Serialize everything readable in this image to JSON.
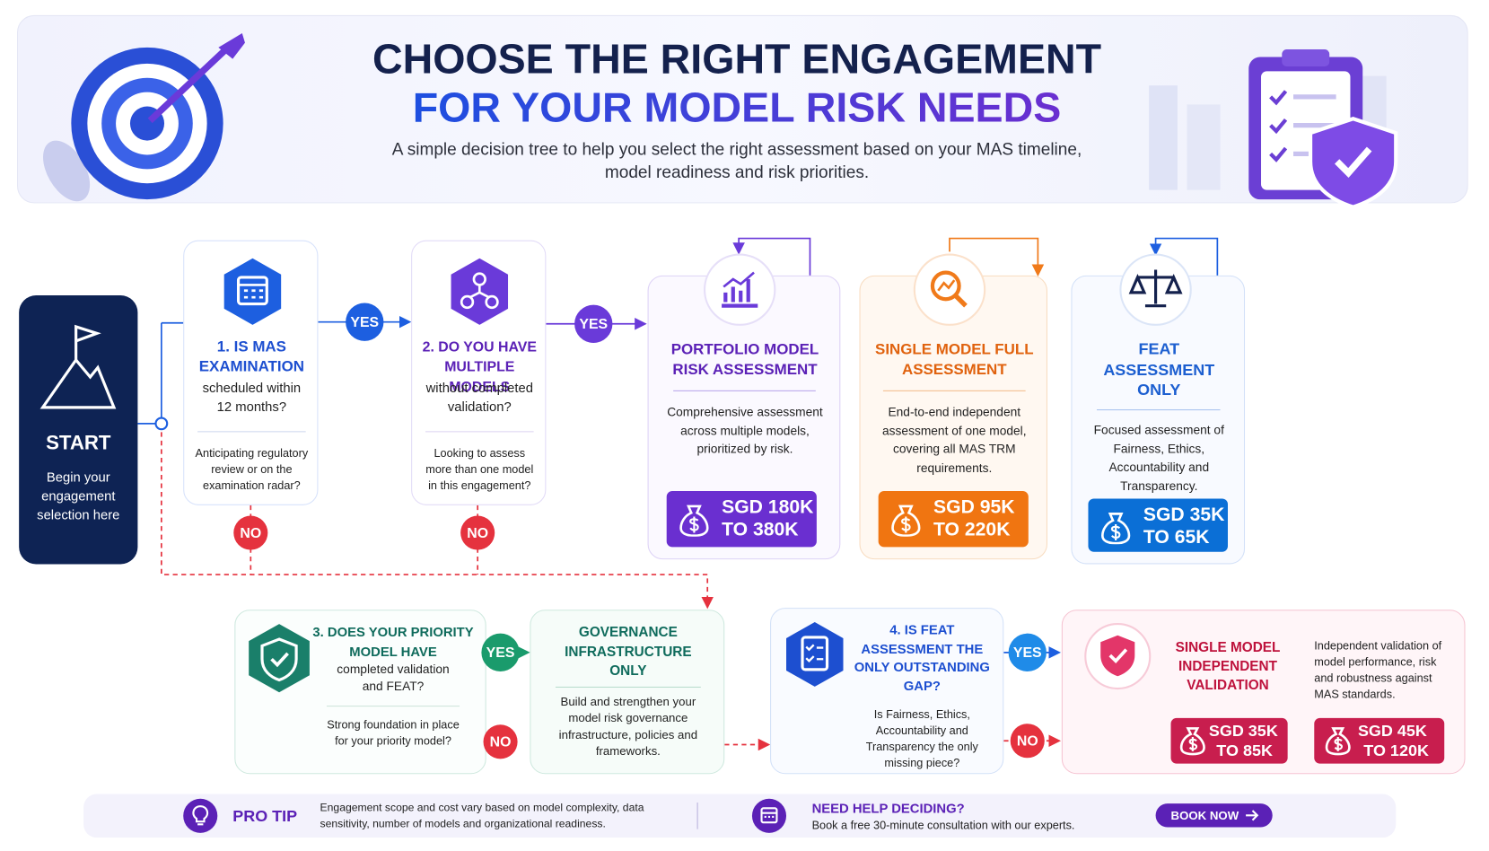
{
  "header": {
    "title_line1": "CHOOSE THE RIGHT ENGAGEMENT",
    "title_line2": "FOR YOUR MODEL RISK NEEDS",
    "subtitle_line1": "A simple decision tree to help you select the right assessment based on your MAS timeline,",
    "subtitle_line2": "model readiness and risk priorities."
  },
  "start": {
    "label": "START",
    "text": "Begin your engagement selection here"
  },
  "questions": [
    {
      "title": "1. IS MAS EXAMINATION",
      "detail": "scheduled within 12 months?",
      "note": "Anticipating regulatory review or on the examination radar?"
    },
    {
      "title": "2. DO YOU HAVE MULTIPLE MODELS",
      "detail": "without completed validation?",
      "note": "Looking to assess more than one model in this engagement?"
    },
    {
      "title": "3. DOES YOUR PRIORITY MODEL HAVE",
      "detail": "completed validation and FEAT?",
      "note": "Strong foundation in place for your priority model?"
    },
    {
      "title": "4. IS FEAT ASSESSMENT THE ONLY OUTSTANDING GAP?",
      "note": "Is Fairness, Ethics, Accountability and Transparency the only missing piece?"
    }
  ],
  "answers": [
    "YES",
    "NO",
    "YES",
    "NO",
    "YES",
    "NO",
    "YES",
    "NO"
  ],
  "outcomes": [
    {
      "title": "PORTFOLIO MODEL RISK ASSESSMENT",
      "description": "Comprehensive assessment across multiple models, prioritized by risk.",
      "prices": [
        {
          "from": "SGD 180K",
          "to": "TO 380K"
        }
      ]
    },
    {
      "title": "SINGLE MODEL FULL ASSESSMENT",
      "description": "End-to-end independent assessment of one model, covering all MAS TRM requirements.",
      "prices": [
        {
          "from": "SGD 95K",
          "to": "TO 220K"
        }
      ]
    },
    {
      "title": "FEAT ASSESSMENT ONLY",
      "description": "Focused assessment of Fairness, Ethics, Accountability and Transparency.",
      "prices": [
        {
          "from": "SGD 35K",
          "to": "TO 65K"
        }
      ]
    },
    {
      "title": "GOVERNANCE INFRASTRUCTURE ONLY",
      "description": "Build and strengthen your model risk governance infrastructure, policies and frameworks."
    },
    {
      "title": "SINGLE MODEL INDEPENDENT VALIDATION",
      "description": "Independent validation of model performance, risk and robustness against MAS standards.",
      "prices": [
        {
          "from": "SGD 35K",
          "to": "TO 85K"
        },
        {
          "from": "SGD 45K",
          "to": "TO 120K"
        }
      ]
    }
  ],
  "footer": {
    "tip_label": "PRO TIP",
    "tip_text": "Engagement scope and cost vary based on model complexity, data sensitivity, number of models and organizational readiness.",
    "help_title": "NEED HELP DECIDING?",
    "help_text": "Book a free 30-minute consultation with our experts.",
    "button": "BOOK NOW"
  }
}
